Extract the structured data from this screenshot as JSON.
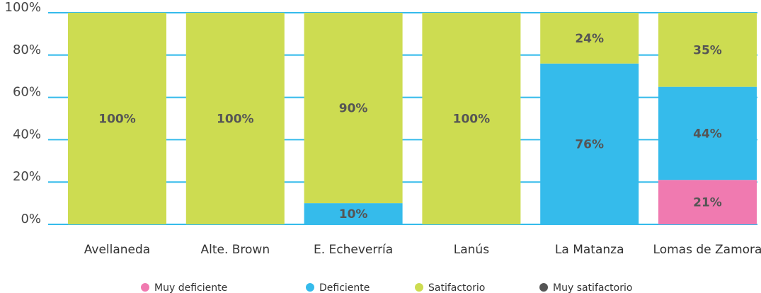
{
  "chart_data": {
    "type": "bar",
    "stacked": true,
    "categories": [
      "Avellaneda",
      "Alte. Brown",
      "E. Echeverría",
      "Lanús",
      "La Matanza",
      "Lomas de Zamora"
    ],
    "ylim": [
      0,
      100
    ],
    "yticks": [
      "0%",
      "20%",
      "40%",
      "60%",
      "80%",
      "100%"
    ],
    "series": [
      {
        "name": "Muy deficiente",
        "color": "#f07ab0",
        "values": [
          0,
          0,
          0,
          0,
          0,
          21
        ],
        "labels": [
          "",
          "",
          "",
          "",
          "",
          "21%"
        ]
      },
      {
        "name": "Deficiente",
        "color": "#35bbeb",
        "values": [
          0,
          0,
          10,
          0,
          76,
          44
        ],
        "labels": [
          "",
          "",
          "10%",
          "",
          "76%",
          "44%"
        ]
      },
      {
        "name": "Satifactorio",
        "color": "#cddc51",
        "values": [
          100,
          100,
          90,
          100,
          24,
          35
        ],
        "labels": [
          "100%",
          "100%",
          "90%",
          "100%",
          "24%",
          "35%"
        ]
      },
      {
        "name": "Muy satifactorio",
        "color": "#555555",
        "values": [
          0,
          0,
          0,
          0,
          0,
          0
        ],
        "labels": [
          "",
          "",
          "",
          "",
          "",
          ""
        ]
      }
    ],
    "grid": true,
    "gridline_color": "#35bbeb",
    "legend_position": "bottom",
    "title": "",
    "xlabel": "",
    "ylabel": ""
  }
}
